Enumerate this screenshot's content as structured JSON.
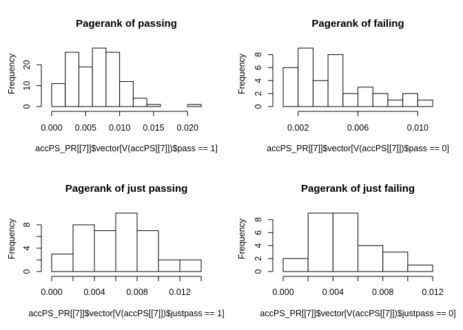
{
  "chart_data": [
    {
      "type": "bar",
      "title": "Pagerank of passing",
      "xlabel": "accPS_PR[[7]]$vector[V(accPS[[7]])$pass == 1]",
      "ylabel": "Frequency",
      "breaks": [
        0.0,
        0.002,
        0.004,
        0.006,
        0.008,
        0.01,
        0.012,
        0.014,
        0.016,
        0.018,
        0.02,
        0.022
      ],
      "values": [
        11,
        26,
        19,
        28,
        26,
        12,
        4,
        1,
        0,
        0,
        1
      ],
      "xticks": [
        0.0,
        0.005,
        0.01,
        0.015,
        0.02
      ],
      "xtick_labels": [
        "0.000",
        "0.005",
        "0.010",
        "0.015",
        "0.020"
      ],
      "yticks": [
        0,
        10,
        20
      ],
      "xlim": [
        0.0,
        0.022
      ],
      "ylim": [
        0,
        28
      ]
    },
    {
      "type": "bar",
      "title": "Pagerank of failing",
      "xlabel": "accPS_PR[[7]]$vector[V(accPS[[7]])$pass == 0]",
      "ylabel": "Frequency",
      "breaks": [
        0.001,
        0.002,
        0.003,
        0.004,
        0.005,
        0.006,
        0.007,
        0.008,
        0.009,
        0.01,
        0.011
      ],
      "values": [
        6,
        9,
        4,
        8,
        2,
        3,
        2,
        1,
        2,
        1
      ],
      "xticks": [
        0.002,
        0.006,
        0.01
      ],
      "xtick_labels": [
        "0.002",
        "0.006",
        "0.010"
      ],
      "yticks": [
        0,
        2,
        4,
        6,
        8
      ],
      "xlim": [
        0.001,
        0.011
      ],
      "ylim": [
        0,
        9
      ]
    },
    {
      "type": "bar",
      "title": "Pagerank of just passing",
      "xlabel": "accPS_PR[[7]]$vector[V(accPS[[7]])$justpass == 1]",
      "ylabel": "Frequency",
      "breaks": [
        0.0,
        0.002,
        0.004,
        0.006,
        0.008,
        0.01,
        0.012,
        0.014
      ],
      "values": [
        3,
        8,
        7,
        10,
        7,
        2,
        2
      ],
      "xticks": [
        0.0,
        0.002,
        0.004,
        0.006,
        0.008,
        0.01,
        0.012,
        0.014
      ],
      "xtick_labels": [
        "0.000",
        "",
        "0.004",
        "",
        "0.008",
        "",
        "0.012",
        ""
      ],
      "yticks": [
        0,
        2,
        4,
        6,
        8
      ],
      "ytick_labels": [
        "0",
        "",
        "4",
        "",
        "8"
      ],
      "xlim": [
        0.0,
        0.014
      ],
      "ylim": [
        0,
        10
      ]
    },
    {
      "type": "bar",
      "title": "Pagerank of just failing",
      "xlabel": "accPS_PR[[7]]$vector[V(accPS[[7]])$justpass == 0]",
      "ylabel": "Frequency",
      "breaks": [
        0.0,
        0.002,
        0.004,
        0.006,
        0.008,
        0.01,
        0.012
      ],
      "values": [
        2,
        9,
        9,
        4,
        3,
        1
      ],
      "xticks": [
        0.0,
        0.002,
        0.004,
        0.006,
        0.008,
        0.01,
        0.012
      ],
      "xtick_labels": [
        "0.000",
        "",
        "0.004",
        "",
        "0.008",
        "",
        "0.012"
      ],
      "yticks": [
        0,
        2,
        4,
        6,
        8
      ],
      "xlim": [
        0.0,
        0.012
      ],
      "ylim": [
        0,
        9
      ]
    }
  ]
}
